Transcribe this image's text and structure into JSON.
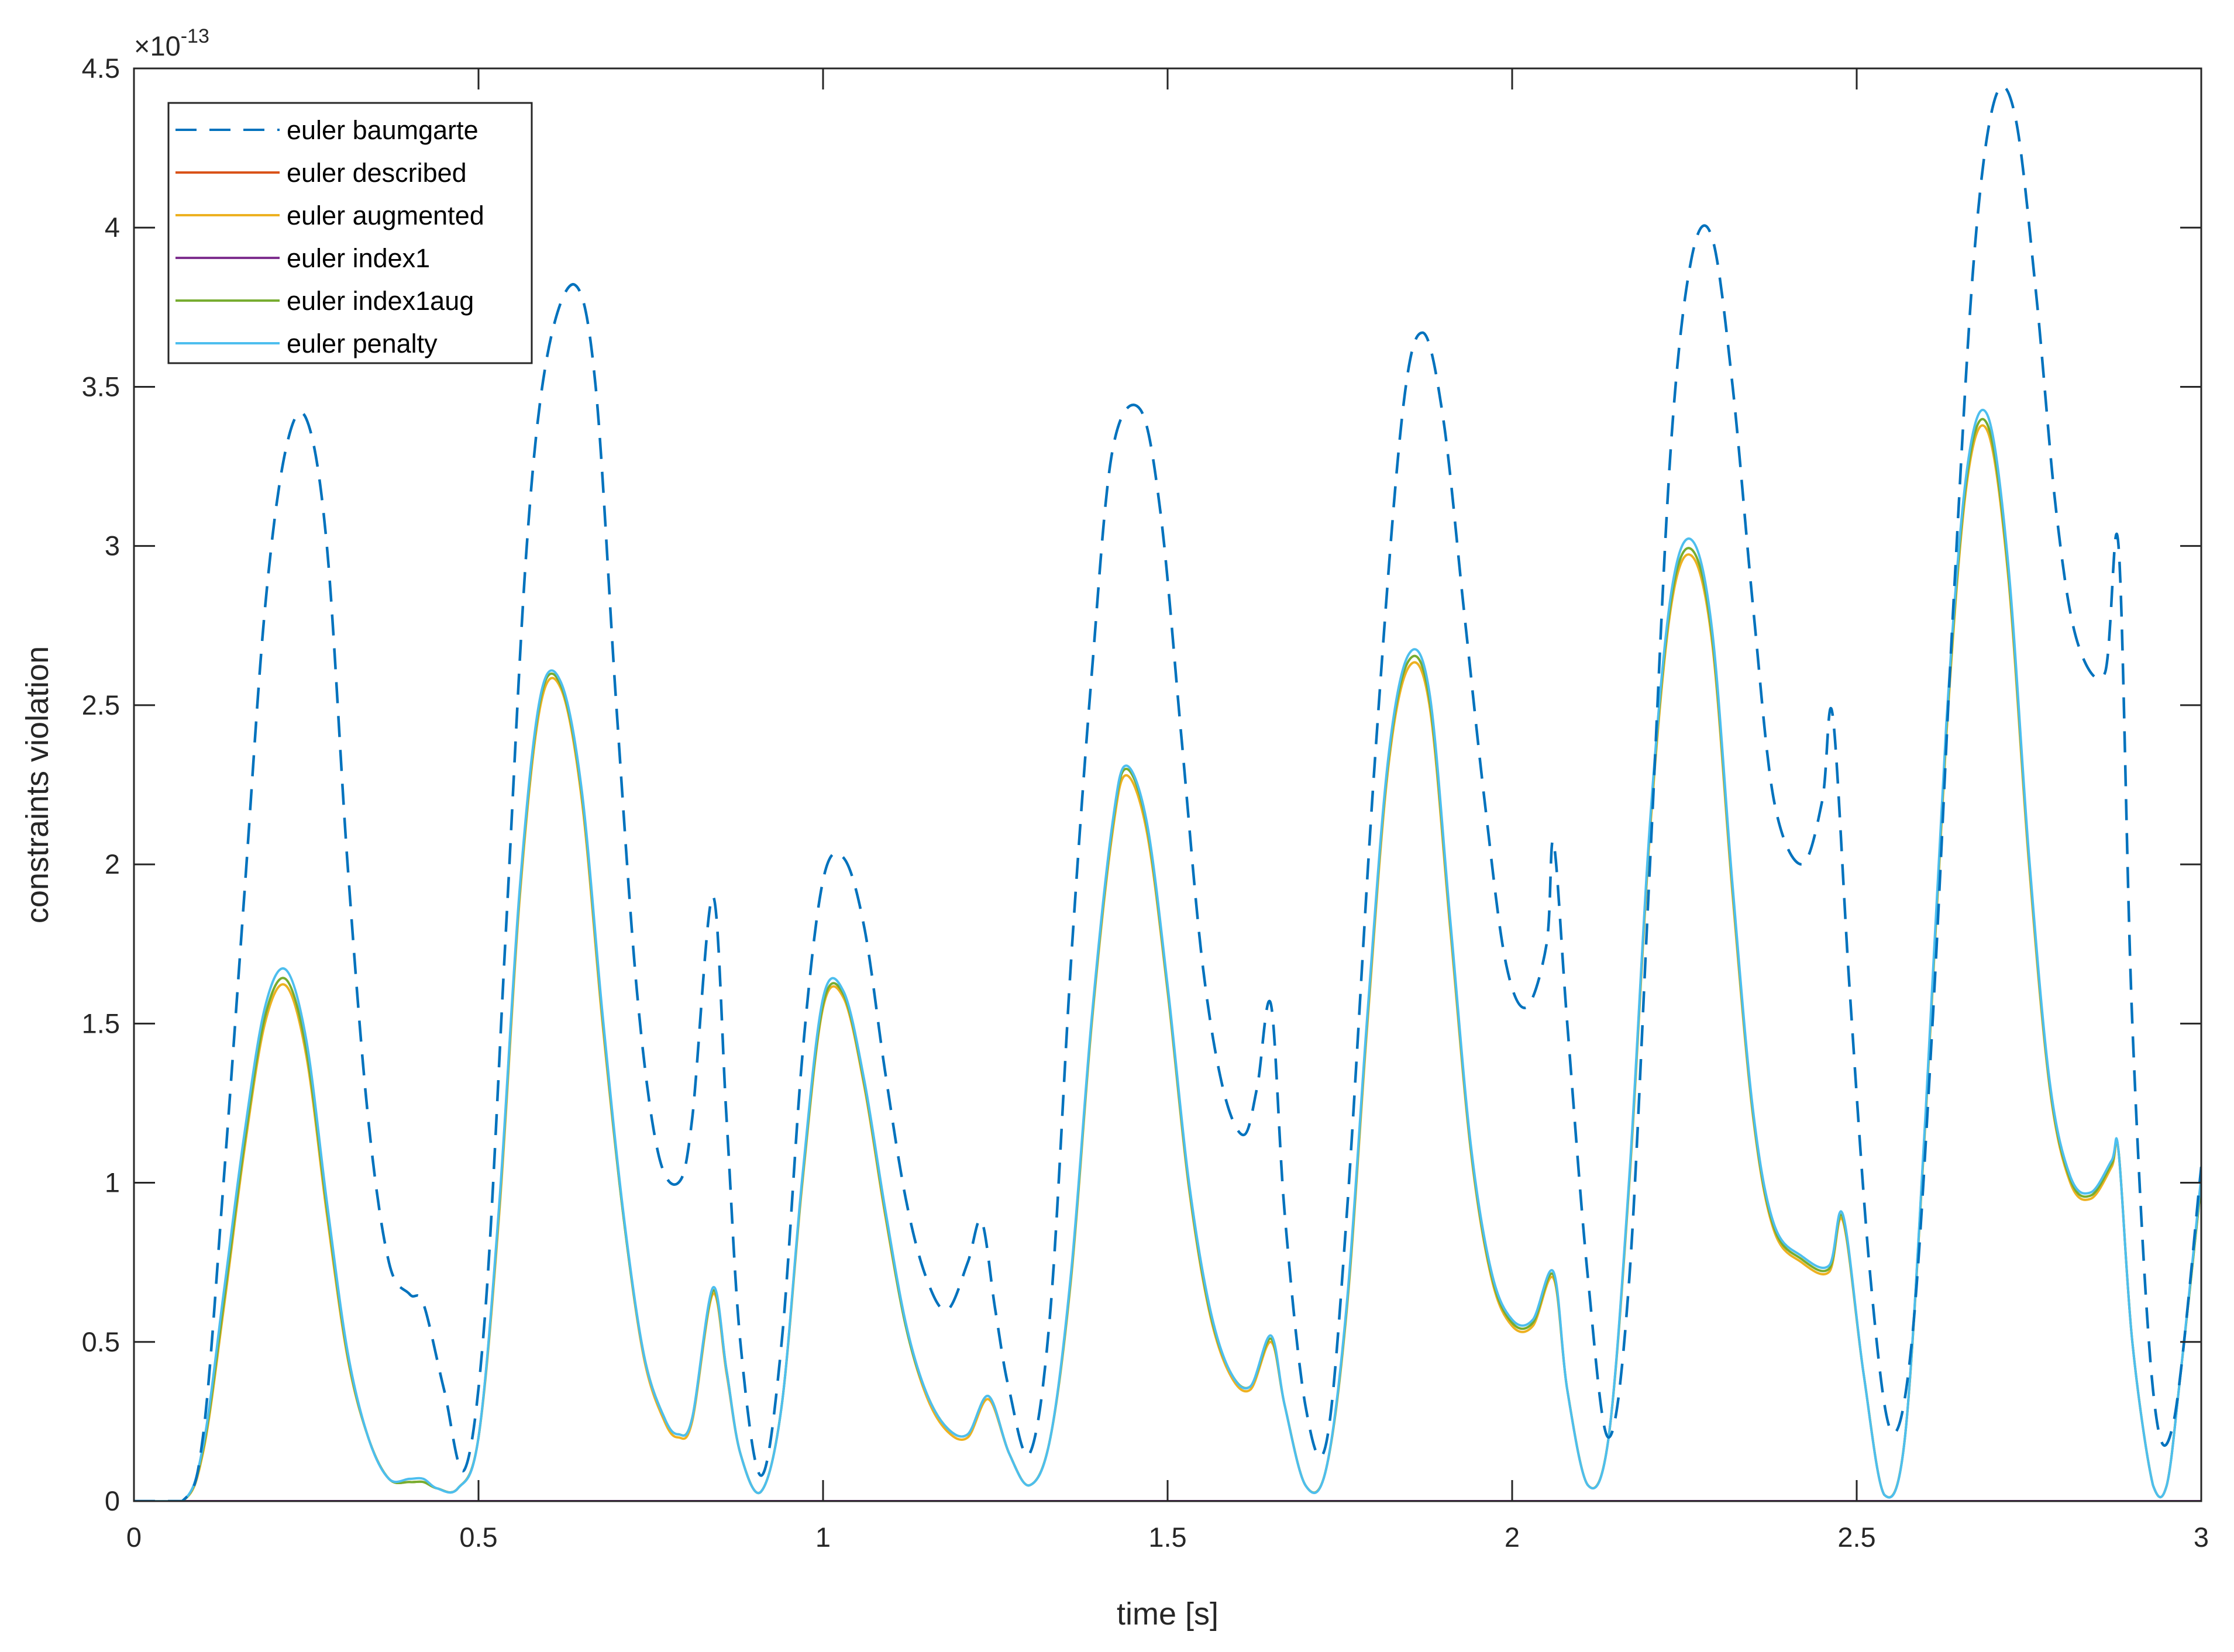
{
  "chart_data": {
    "type": "line",
    "xlabel": "time [s]",
    "ylabel": "constraints violation",
    "xlim": [
      0,
      3
    ],
    "ylim": [
      0,
      4.5
    ],
    "y_scale_exponent": "×10",
    "y_scale_power": "-13",
    "xticks": [
      0,
      0.5,
      1,
      1.5,
      2,
      2.5,
      3
    ],
    "xtick_labels": [
      "0",
      "0.5",
      "1",
      "1.5",
      "2",
      "2.5",
      "3"
    ],
    "yticks": [
      0,
      0.5,
      1,
      1.5,
      2,
      2.5,
      3,
      3.5,
      4,
      4.5
    ],
    "ytick_labels": [
      "0",
      "0.5",
      "1",
      "1.5",
      "2",
      "2.5",
      "3",
      "3.5",
      "4",
      "4.5"
    ],
    "grid": false,
    "legend_position": "top-left",
    "series": [
      {
        "name": "euler baumgarte",
        "color": "#0072BD",
        "dash": true,
        "x": [
          0,
          0.07,
          0.1,
          0.13,
          0.16,
          0.19,
          0.22,
          0.25,
          0.28,
          0.31,
          0.34,
          0.37,
          0.4,
          0.42,
          0.45,
          0.48,
          0.51,
          0.54,
          0.57,
          0.6,
          0.64,
          0.67,
          0.7,
          0.73,
          0.76,
          0.79,
          0.81,
          0.84,
          0.86,
          0.88,
          0.91,
          0.94,
          0.97,
          1.0,
          1.03,
          1.06,
          1.09,
          1.12,
          1.15,
          1.18,
          1.21,
          1.23,
          1.25,
          1.27,
          1.3,
          1.33,
          1.36,
          1.39,
          1.42,
          1.46,
          1.49,
          1.52,
          1.55,
          1.58,
          1.61,
          1.63,
          1.65,
          1.67,
          1.7,
          1.73,
          1.76,
          1.8,
          1.84,
          1.87,
          1.9,
          1.93,
          1.96,
          1.99,
          2.02,
          2.05,
          2.06,
          2.08,
          2.11,
          2.14,
          2.17,
          2.2,
          2.23,
          2.26,
          2.29,
          2.32,
          2.35,
          2.38,
          2.42,
          2.45,
          2.465,
          2.49,
          2.52,
          2.55,
          2.58,
          2.61,
          2.64,
          2.67,
          2.7,
          2.73,
          2.76,
          2.79,
          2.82,
          2.86,
          2.88,
          2.9,
          2.93,
          2.96,
          3.0
        ],
        "y": [
          0,
          0.0,
          0.2,
          1.0,
          1.9,
          2.8,
          3.3,
          3.4,
          3.0,
          2.0,
          1.2,
          0.75,
          0.65,
          0.62,
          0.35,
          0.1,
          0.6,
          1.8,
          3.0,
          3.6,
          3.82,
          3.5,
          2.5,
          1.6,
          1.1,
          1.0,
          1.2,
          1.9,
          1.2,
          0.5,
          0.08,
          0.5,
          1.4,
          1.95,
          2.02,
          1.8,
          1.35,
          0.95,
          0.7,
          0.6,
          0.75,
          0.88,
          0.6,
          0.35,
          0.15,
          0.6,
          1.7,
          2.6,
          3.3,
          3.43,
          3.1,
          2.4,
          1.7,
          1.3,
          1.15,
          1.3,
          1.56,
          0.9,
          0.3,
          0.18,
          0.9,
          2.3,
          3.4,
          3.67,
          3.4,
          2.8,
          2.2,
          1.7,
          1.55,
          1.75,
          2.07,
          1.5,
          0.7,
          0.2,
          0.7,
          2.0,
          3.3,
          3.9,
          3.97,
          3.5,
          2.8,
          2.2,
          2.0,
          2.2,
          2.47,
          1.6,
          0.7,
          0.22,
          0.5,
          1.5,
          2.8,
          3.9,
          4.4,
          4.35,
          3.8,
          3.1,
          2.7,
          2.6,
          3.0,
          1.5,
          0.35,
          0.25,
          1.05
        ]
      },
      {
        "name": "euler described",
        "color": "#D95319",
        "dash": false,
        "x": [
          0,
          3
        ],
        "y": [
          0,
          0
        ]
      },
      {
        "name": "euler augmented",
        "color": "#EDB120",
        "dash": false,
        "x": [
          0,
          0.07,
          0.1,
          0.13,
          0.16,
          0.19,
          0.22,
          0.25,
          0.28,
          0.31,
          0.34,
          0.37,
          0.4,
          0.42,
          0.44,
          0.47,
          0.5,
          0.53,
          0.56,
          0.59,
          0.62,
          0.65,
          0.68,
          0.71,
          0.74,
          0.77,
          0.79,
          0.81,
          0.84,
          0.86,
          0.88,
          0.91,
          0.94,
          0.97,
          1.0,
          1.03,
          1.06,
          1.09,
          1.12,
          1.15,
          1.18,
          1.21,
          1.24,
          1.27,
          1.3,
          1.33,
          1.36,
          1.39,
          1.42,
          1.44,
          1.47,
          1.5,
          1.53,
          1.56,
          1.59,
          1.62,
          1.65,
          1.67,
          1.7,
          1.73,
          1.76,
          1.79,
          1.82,
          1.85,
          1.88,
          1.91,
          1.94,
          1.97,
          2.0,
          2.03,
          2.06,
          2.08,
          2.11,
          2.14,
          2.17,
          2.2,
          2.23,
          2.26,
          2.29,
          2.32,
          2.35,
          2.38,
          2.42,
          2.46,
          2.48,
          2.51,
          2.54,
          2.57,
          2.6,
          2.63,
          2.66,
          2.69,
          2.72,
          2.75,
          2.78,
          2.81,
          2.84,
          2.87,
          2.88,
          2.9,
          2.93,
          2.95,
          2.97,
          3.0
        ],
        "y": [
          0,
          0.0,
          0.15,
          0.6,
          1.1,
          1.5,
          1.62,
          1.4,
          0.9,
          0.45,
          0.2,
          0.07,
          0.06,
          0.06,
          0.04,
          0.04,
          0.2,
          0.9,
          1.9,
          2.5,
          2.55,
          2.2,
          1.5,
          0.9,
          0.45,
          0.25,
          0.2,
          0.25,
          0.65,
          0.4,
          0.15,
          0.03,
          0.3,
          1.0,
          1.55,
          1.58,
          1.3,
          0.9,
          0.55,
          0.33,
          0.22,
          0.2,
          0.32,
          0.15,
          0.05,
          0.2,
          0.7,
          1.5,
          2.1,
          2.28,
          2.1,
          1.6,
          1.0,
          0.6,
          0.4,
          0.35,
          0.5,
          0.3,
          0.05,
          0.1,
          0.6,
          1.5,
          2.3,
          2.62,
          2.5,
          1.8,
          1.1,
          0.7,
          0.55,
          0.55,
          0.7,
          0.35,
          0.05,
          0.2,
          1.0,
          2.1,
          2.8,
          2.97,
          2.7,
          1.9,
          1.2,
          0.85,
          0.75,
          0.72,
          0.88,
          0.4,
          0.02,
          0.2,
          1.2,
          2.4,
          3.2,
          3.36,
          2.9,
          2.0,
          1.3,
          1.0,
          0.95,
          1.05,
          1.1,
          0.5,
          0.05,
          0.05,
          0.4,
          1.0
        ]
      },
      {
        "name": "euler index1",
        "color": "#7E2F8E",
        "dash": false,
        "x": [
          0,
          3
        ],
        "y": [
          0,
          0
        ]
      },
      {
        "name": "euler index1aug",
        "color": "#77AC30",
        "dash": false,
        "x": [
          0,
          0.07,
          0.1,
          0.13,
          0.16,
          0.19,
          0.22,
          0.25,
          0.28,
          0.31,
          0.34,
          0.37,
          0.4,
          0.42,
          0.44,
          0.47,
          0.5,
          0.53,
          0.56,
          0.59,
          0.62,
          0.65,
          0.68,
          0.71,
          0.74,
          0.77,
          0.79,
          0.81,
          0.84,
          0.86,
          0.88,
          0.91,
          0.94,
          0.97,
          1.0,
          1.03,
          1.06,
          1.09,
          1.12,
          1.15,
          1.18,
          1.21,
          1.24,
          1.27,
          1.3,
          1.33,
          1.36,
          1.39,
          1.42,
          1.44,
          1.47,
          1.5,
          1.53,
          1.56,
          1.59,
          1.62,
          1.65,
          1.67,
          1.7,
          1.73,
          1.76,
          1.79,
          1.82,
          1.85,
          1.88,
          1.91,
          1.94,
          1.97,
          2.0,
          2.03,
          2.06,
          2.08,
          2.11,
          2.14,
          2.17,
          2.2,
          2.23,
          2.26,
          2.29,
          2.32,
          2.35,
          2.38,
          2.42,
          2.46,
          2.48,
          2.51,
          2.54,
          2.57,
          2.6,
          2.63,
          2.66,
          2.69,
          2.72,
          2.75,
          2.78,
          2.81,
          2.84,
          2.87,
          2.88,
          2.9,
          2.93,
          2.95,
          2.97,
          3.0
        ],
        "y": [
          0,
          0.0,
          0.16,
          0.62,
          1.12,
          1.52,
          1.64,
          1.42,
          0.92,
          0.46,
          0.2,
          0.07,
          0.06,
          0.06,
          0.04,
          0.04,
          0.2,
          0.92,
          1.92,
          2.52,
          2.56,
          2.22,
          1.52,
          0.9,
          0.46,
          0.26,
          0.21,
          0.26,
          0.66,
          0.41,
          0.15,
          0.03,
          0.3,
          1.01,
          1.56,
          1.59,
          1.31,
          0.91,
          0.55,
          0.34,
          0.23,
          0.21,
          0.33,
          0.15,
          0.05,
          0.2,
          0.71,
          1.51,
          2.12,
          2.3,
          2.12,
          1.61,
          1.01,
          0.61,
          0.41,
          0.36,
          0.51,
          0.3,
          0.05,
          0.1,
          0.61,
          1.52,
          2.32,
          2.64,
          2.52,
          1.82,
          1.11,
          0.71,
          0.56,
          0.56,
          0.71,
          0.35,
          0.05,
          0.2,
          1.01,
          2.12,
          2.82,
          2.99,
          2.72,
          1.92,
          1.21,
          0.86,
          0.76,
          0.73,
          0.89,
          0.4,
          0.02,
          0.2,
          1.21,
          2.42,
          3.22,
          3.38,
          2.92,
          2.02,
          1.31,
          1.01,
          0.96,
          1.06,
          1.1,
          0.5,
          0.05,
          0.05,
          0.4,
          1.0
        ]
      },
      {
        "name": "euler penalty",
        "color": "#4DBEEE",
        "dash": false,
        "x": [
          0,
          0.07,
          0.1,
          0.13,
          0.16,
          0.19,
          0.22,
          0.25,
          0.28,
          0.31,
          0.34,
          0.37,
          0.4,
          0.42,
          0.44,
          0.47,
          0.5,
          0.53,
          0.56,
          0.59,
          0.62,
          0.65,
          0.68,
          0.71,
          0.74,
          0.77,
          0.79,
          0.81,
          0.84,
          0.86,
          0.88,
          0.91,
          0.94,
          0.97,
          1.0,
          1.03,
          1.06,
          1.09,
          1.12,
          1.15,
          1.18,
          1.21,
          1.24,
          1.27,
          1.3,
          1.33,
          1.36,
          1.39,
          1.42,
          1.44,
          1.47,
          1.5,
          1.53,
          1.56,
          1.59,
          1.62,
          1.65,
          1.67,
          1.7,
          1.73,
          1.76,
          1.79,
          1.82,
          1.85,
          1.88,
          1.91,
          1.94,
          1.97,
          2.0,
          2.03,
          2.06,
          2.08,
          2.11,
          2.14,
          2.17,
          2.2,
          2.23,
          2.26,
          2.29,
          2.32,
          2.35,
          2.38,
          2.42,
          2.46,
          2.48,
          2.51,
          2.54,
          2.57,
          2.6,
          2.63,
          2.66,
          2.69,
          2.72,
          2.75,
          2.78,
          2.81,
          2.84,
          2.87,
          2.88,
          2.9,
          2.93,
          2.95,
          2.97,
          3.0
        ],
        "y": [
          0,
          0.0,
          0.17,
          0.65,
          1.15,
          1.55,
          1.67,
          1.45,
          0.94,
          0.47,
          0.2,
          0.07,
          0.07,
          0.07,
          0.04,
          0.04,
          0.2,
          0.93,
          1.93,
          2.53,
          2.57,
          2.23,
          1.53,
          0.91,
          0.46,
          0.26,
          0.21,
          0.26,
          0.67,
          0.41,
          0.15,
          0.03,
          0.3,
          1.02,
          1.58,
          1.6,
          1.32,
          0.92,
          0.56,
          0.34,
          0.23,
          0.21,
          0.33,
          0.15,
          0.05,
          0.2,
          0.72,
          1.52,
          2.13,
          2.31,
          2.13,
          1.62,
          1.02,
          0.62,
          0.41,
          0.36,
          0.52,
          0.3,
          0.05,
          0.1,
          0.62,
          1.53,
          2.33,
          2.66,
          2.54,
          1.83,
          1.12,
          0.72,
          0.57,
          0.57,
          0.72,
          0.35,
          0.05,
          0.2,
          1.02,
          2.13,
          2.84,
          3.02,
          2.74,
          1.93,
          1.22,
          0.87,
          0.77,
          0.74,
          0.9,
          0.4,
          0.02,
          0.2,
          1.22,
          2.44,
          3.24,
          3.41,
          2.94,
          2.03,
          1.32,
          1.02,
          0.97,
          1.07,
          1.1,
          0.5,
          0.05,
          0.05,
          0.4,
          1.02
        ]
      }
    ]
  }
}
